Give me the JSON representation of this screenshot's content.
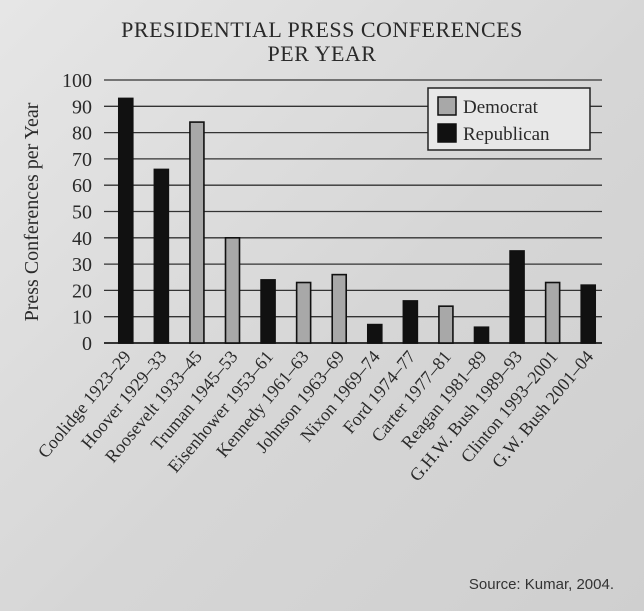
{
  "chart_data": {
    "type": "bar",
    "title_line1": "PRESIDENTIAL PRESS CONFERENCES",
    "title_line2": "PER YEAR",
    "ylabel": "Press Conferences per Year",
    "xlabel": "",
    "ylim": [
      0,
      100
    ],
    "yticks": [
      0,
      10,
      20,
      30,
      40,
      50,
      60,
      70,
      80,
      90,
      100
    ],
    "grid": true,
    "legend_position": "top-right",
    "legend": [
      {
        "name": "Democrat",
        "color": "#a8a8a8"
      },
      {
        "name": "Republican",
        "color": "#111111"
      }
    ],
    "categories": [
      "Coolidge 1923–29",
      "Hoover 1929–33",
      "Roosevelt 1933–45",
      "Truman 1945–53",
      "Eisenhower 1953–61",
      "Kennedy 1961–63",
      "Johnson 1963–69",
      "Nixon 1969–74",
      "Ford 1974–77",
      "Carter 1977–81",
      "Reagan 1981–89",
      "G.H.W. Bush 1989–93",
      "Clinton 1993–2001",
      "G.W. Bush 2001–04"
    ],
    "values": [
      93,
      66,
      84,
      40,
      24,
      23,
      26,
      7,
      16,
      14,
      6,
      35,
      23,
      22
    ],
    "party": [
      "Republican",
      "Republican",
      "Democrat",
      "Democrat",
      "Republican",
      "Democrat",
      "Democrat",
      "Republican",
      "Republican",
      "Democrat",
      "Republican",
      "Republican",
      "Democrat",
      "Republican"
    ]
  },
  "source": "Source: Kumar, 2004."
}
